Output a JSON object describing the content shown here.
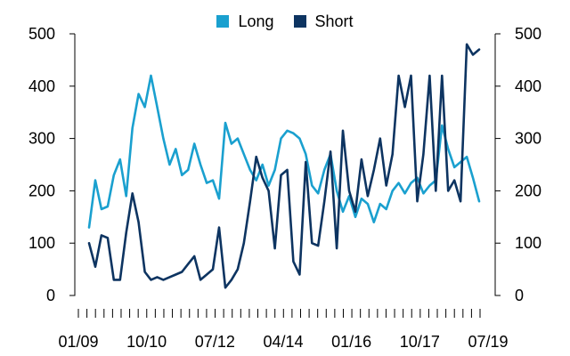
{
  "chart_data": {
    "type": "line",
    "title": "",
    "xlabel": "",
    "ylabel": "",
    "x_tick_labels": [
      "01/09",
      "10/10",
      "07/12",
      "04/14",
      "01/16",
      "10/17",
      "07/19"
    ],
    "y_tick_labels": [
      "0",
      "100",
      "200",
      "300",
      "400",
      "500"
    ],
    "ylim": [
      0,
      500
    ],
    "y_axes": "left and right (same scale)",
    "grid": false,
    "legend": {
      "position": "top-center"
    },
    "colors": {
      "Long": "#1aa0cf",
      "Short": "#0d3461"
    },
    "x": [
      "01/09",
      "03/09",
      "05/09",
      "07/09",
      "09/09",
      "11/09",
      "01/10",
      "03/10",
      "05/10",
      "07/10",
      "09/10",
      "11/10",
      "01/11",
      "03/11",
      "05/11",
      "07/11",
      "09/11",
      "11/11",
      "01/12",
      "03/12",
      "05/12",
      "07/12",
      "09/12",
      "11/12",
      "01/13",
      "03/13",
      "05/13",
      "07/13",
      "09/13",
      "11/13",
      "01/14",
      "03/14",
      "05/14",
      "07/14",
      "09/14",
      "11/14",
      "01/15",
      "03/15",
      "05/15",
      "07/15",
      "09/15",
      "11/15",
      "01/16",
      "03/16",
      "05/16",
      "07/16",
      "09/16",
      "11/16",
      "01/17",
      "03/17",
      "05/17",
      "07/17",
      "09/17",
      "11/17",
      "01/18",
      "03/18",
      "05/18",
      "07/18",
      "09/18",
      "11/18",
      "01/19",
      "03/19",
      "05/19",
      "07/19"
    ],
    "series": [
      {
        "name": "Long",
        "values": [
          130,
          220,
          165,
          170,
          230,
          260,
          190,
          320,
          385,
          360,
          420,
          360,
          300,
          250,
          280,
          230,
          240,
          290,
          250,
          215,
          220,
          185,
          330,
          290,
          300,
          270,
          240,
          220,
          250,
          210,
          240,
          300,
          315,
          310,
          300,
          270,
          210,
          195,
          240,
          270,
          200,
          160,
          190,
          150,
          185,
          175,
          140,
          175,
          165,
          200,
          215,
          195,
          215,
          225,
          195,
          210,
          220,
          325,
          280,
          245,
          255,
          265,
          225,
          180
        ]
      },
      {
        "name": "Short",
        "values": [
          100,
          55,
          115,
          110,
          30,
          30,
          120,
          195,
          140,
          45,
          30,
          35,
          30,
          35,
          40,
          45,
          60,
          75,
          30,
          40,
          50,
          130,
          15,
          30,
          50,
          100,
          180,
          265,
          225,
          200,
          90,
          230,
          240,
          65,
          40,
          255,
          100,
          95,
          180,
          275,
          90,
          315,
          200,
          160,
          260,
          190,
          240,
          300,
          210,
          270,
          420,
          360,
          420,
          180,
          270,
          420,
          200,
          420,
          200,
          220,
          180,
          480,
          460,
          470
        ]
      }
    ]
  }
}
